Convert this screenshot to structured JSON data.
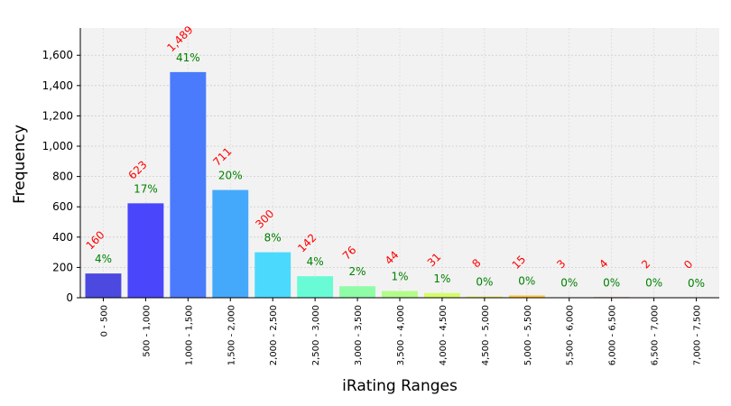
{
  "chart_data": {
    "type": "bar",
    "title": "",
    "xlabel": "iRating Ranges",
    "ylabel": "Frequency",
    "ylim": [
      0,
      1780
    ],
    "yticks": [
      0,
      200,
      400,
      600,
      800,
      1000,
      1200,
      1400,
      1600
    ],
    "ytick_labels": [
      "0",
      "200",
      "400",
      "600",
      "800",
      "1,000",
      "1,200",
      "1,400",
      "1,600"
    ],
    "grid": true,
    "categories": [
      "0 - 500",
      "500 - 1,000",
      "1,000 - 1,500",
      "1,500 - 2,000",
      "2,000 - 2,500",
      "2,500 - 3,000",
      "3,000 - 3,500",
      "3,500 - 4,000",
      "4,000 - 4,500",
      "4,500 - 5,000",
      "5,000 - 5,500",
      "5,500 - 6,000",
      "6,000 - 6,500",
      "6,500 - 7,000",
      "7,000 - 7,500"
    ],
    "values": [
      160,
      623,
      1489,
      711,
      300,
      142,
      76,
      44,
      31,
      8,
      15,
      3,
      4,
      2,
      0
    ],
    "count_labels": [
      "160",
      "623",
      "1,489",
      "711",
      "300",
      "142",
      "76",
      "44",
      "31",
      "8",
      "15",
      "3",
      "4",
      "2",
      "0"
    ],
    "percent_labels": [
      "4%",
      "17%",
      "41%",
      "20%",
      "8%",
      "4%",
      "2%",
      "1%",
      "1%",
      "0%",
      "0%",
      "0%",
      "0%",
      "0%",
      "0%"
    ],
    "colors": [
      "#4b49e0",
      "#4a46fb",
      "#4a7bfd",
      "#45a9fb",
      "#4bd9fd",
      "#69fbd5",
      "#8ffca8",
      "#b2fc8a",
      "#d5fc68",
      "#f5f04a",
      "#ffc83e",
      "#ff9a33",
      "#ff6a2a",
      "#f23f1f",
      "#d61a1a"
    ],
    "count_label_color": "#ff0000",
    "percent_label_color": "#008000",
    "plot_background": "#f2f2f2"
  }
}
